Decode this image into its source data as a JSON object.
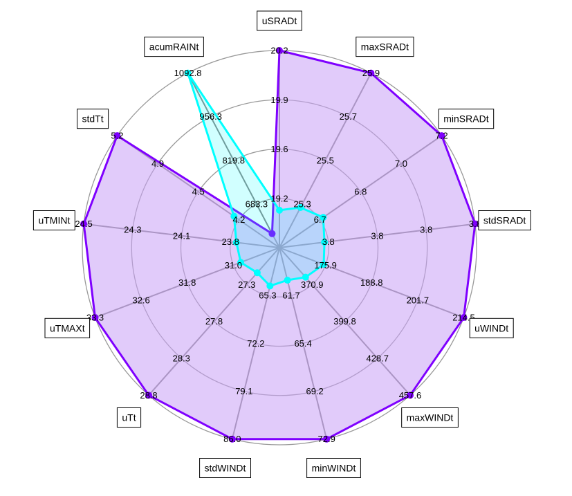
{
  "chart_data": {
    "type": "radar",
    "axes": [
      "uSRADt",
      "maxSRADt",
      "minSRADt",
      "stdSRADt",
      "uWINDt",
      "maxWINDt",
      "minWINDt",
      "stdWINDt",
      "uTt",
      "uTMAXt",
      "uTMINt",
      "stdTt",
      "acumRAINt"
    ],
    "ring_labels": [
      [
        "19.2",
        "19.6",
        "19.9",
        "20.2"
      ],
      [
        "25.3",
        "25.5",
        "25.7",
        "25.9"
      ],
      [
        "6.7",
        "6.8",
        "7.0",
        "7.2"
      ],
      [
        "3.8",
        "3.8",
        "3.8",
        "3.8"
      ],
      [
        "175.9",
        "188.8",
        "201.7",
        "214.5"
      ],
      [
        "370.9",
        "399.8",
        "428.7",
        "457.6"
      ],
      [
        "61.7",
        "65.4",
        "69.2",
        "72.9"
      ],
      [
        "65.3",
        "72.2",
        "79.1",
        "86.0"
      ],
      [
        "27.3",
        "27.8",
        "28.3",
        "28.8"
      ],
      [
        "31.0",
        "31.8",
        "32.6",
        "33.3"
      ],
      [
        "23.8",
        "24.1",
        "24.3",
        "24.5"
      ],
      [
        "4.2",
        "4.5",
        "4.9",
        "5.2"
      ],
      [
        "683.3",
        "819.8",
        "956.3",
        "1092.8"
      ]
    ],
    "ring_count": 4,
    "series": [
      {
        "values": [
          1.0,
          1.0,
          1.0,
          1.0,
          1.0,
          1.0,
          1.0,
          1.0,
          1.0,
          1.0,
          1.0,
          1.0,
          0.08
        ],
        "line_color": "#7f00ff",
        "fill_color": "#c8a0f5",
        "fill_opacity": 0.55
      },
      {
        "values": [
          0.19,
          0.23,
          0.27,
          0.23,
          0.24,
          0.2,
          0.17,
          0.2,
          0.17,
          0.21,
          0.22,
          0.28,
          1.0
        ],
        "line_color": "#00ffff",
        "fill_color": "#00ffff",
        "fill_opacity": 0.18
      }
    ],
    "grid_color": "#999999",
    "spoke_color": "#888888",
    "grid": true,
    "legend": "none"
  }
}
